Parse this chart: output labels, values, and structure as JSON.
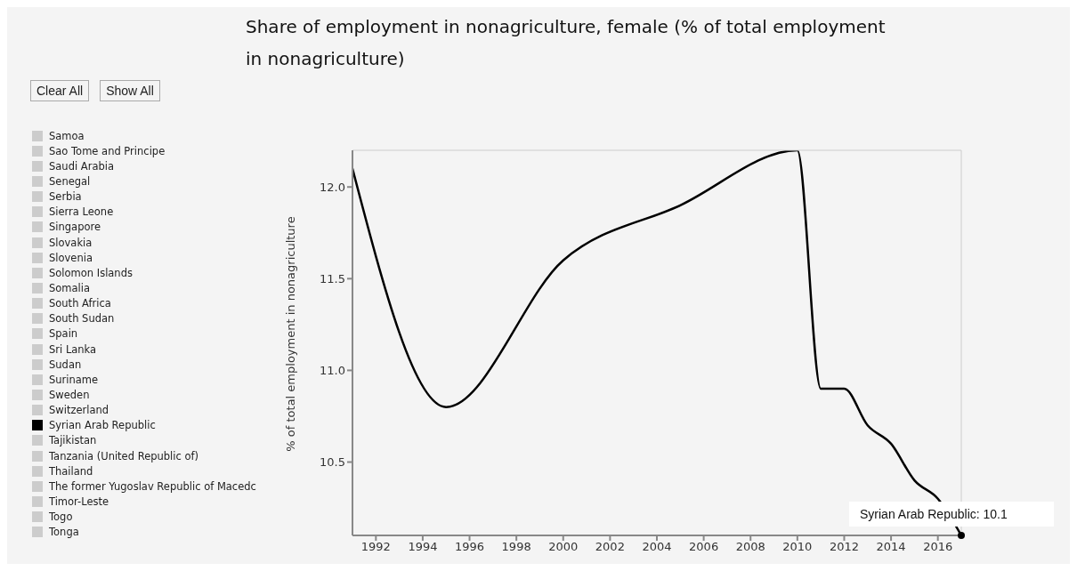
{
  "chart_data": {
    "type": "line",
    "title": "Share of employment in nonagriculture, female (% of total employment in nonagriculture)",
    "ylabel": "% of total employment in nonagriculture",
    "x": [
      1991,
      1995,
      2000,
      2005,
      2010,
      2011,
      2012,
      2013,
      2014,
      2015,
      2016,
      2017
    ],
    "xlim": [
      1991,
      2017
    ],
    "xticks": [
      1992,
      1994,
      1996,
      1998,
      2000,
      2002,
      2004,
      2006,
      2008,
      2010,
      2012,
      2014,
      2016
    ],
    "ylim": [
      10.1,
      12.2
    ],
    "yticks": [
      10.5,
      {
        "value": 11,
        "label": "11.0"
      },
      11.5,
      {
        "value": 12,
        "label": "12.0"
      }
    ],
    "grid": false,
    "legend": "left",
    "marker": "none",
    "line_style": "solid",
    "series": [
      {
        "name": "Samoa",
        "color": "#cccccc",
        "values": [
          null,
          null,
          null,
          null,
          null,
          null,
          null,
          null,
          null,
          null,
          null,
          null
        ]
      },
      {
        "name": "Sao Tome and Principe",
        "color": "#cccccc",
        "values": [
          null,
          null,
          null,
          null,
          null,
          null,
          null,
          null,
          null,
          null,
          null,
          null
        ]
      },
      {
        "name": "Saudi Arabia",
        "color": "#cccccc",
        "values": [
          null,
          null,
          null,
          null,
          null,
          null,
          null,
          null,
          null,
          null,
          null,
          null
        ]
      },
      {
        "name": "Senegal",
        "color": "#cccccc",
        "values": [
          null,
          null,
          null,
          null,
          null,
          null,
          null,
          null,
          null,
          null,
          null,
          null
        ]
      },
      {
        "name": "Serbia",
        "color": "#cccccc",
        "values": [
          null,
          null,
          null,
          null,
          null,
          null,
          null,
          null,
          null,
          null,
          null,
          null
        ]
      },
      {
        "name": "Sierra Leone",
        "color": "#cccccc",
        "values": [
          null,
          null,
          null,
          null,
          null,
          null,
          null,
          null,
          null,
          null,
          null,
          null
        ]
      },
      {
        "name": "Singapore",
        "color": "#cccccc",
        "values": [
          null,
          null,
          null,
          null,
          null,
          null,
          null,
          null,
          null,
          null,
          null,
          null
        ]
      },
      {
        "name": "Slovakia",
        "color": "#cccccc",
        "values": [
          null,
          null,
          null,
          null,
          null,
          null,
          null,
          null,
          null,
          null,
          null,
          null
        ]
      },
      {
        "name": "Slovenia",
        "color": "#cccccc",
        "values": [
          null,
          null,
          null,
          null,
          null,
          null,
          null,
          null,
          null,
          null,
          null,
          null
        ]
      },
      {
        "name": "Solomon Islands",
        "color": "#cccccc",
        "values": [
          null,
          null,
          null,
          null,
          null,
          null,
          null,
          null,
          null,
          null,
          null,
          null
        ]
      },
      {
        "name": "Somalia",
        "color": "#cccccc",
        "values": [
          null,
          null,
          null,
          null,
          null,
          null,
          null,
          null,
          null,
          null,
          null,
          null
        ]
      },
      {
        "name": "South Africa",
        "color": "#cccccc",
        "values": [
          null,
          null,
          null,
          null,
          null,
          null,
          null,
          null,
          null,
          null,
          null,
          null
        ]
      },
      {
        "name": "South Sudan",
        "color": "#cccccc",
        "values": [
          null,
          null,
          null,
          null,
          null,
          null,
          null,
          null,
          null,
          null,
          null,
          null
        ]
      },
      {
        "name": "Spain",
        "color": "#cccccc",
        "values": [
          null,
          null,
          null,
          null,
          null,
          null,
          null,
          null,
          null,
          null,
          null,
          null
        ]
      },
      {
        "name": "Sri Lanka",
        "color": "#cccccc",
        "values": [
          null,
          null,
          null,
          null,
          null,
          null,
          null,
          null,
          null,
          null,
          null,
          null
        ]
      },
      {
        "name": "Sudan",
        "color": "#cccccc",
        "values": [
          null,
          null,
          null,
          null,
          null,
          null,
          null,
          null,
          null,
          null,
          null,
          null
        ]
      },
      {
        "name": "Suriname",
        "color": "#cccccc",
        "values": [
          null,
          null,
          null,
          null,
          null,
          null,
          null,
          null,
          null,
          null,
          null,
          null
        ]
      },
      {
        "name": "Sweden",
        "color": "#cccccc",
        "values": [
          null,
          null,
          null,
          null,
          null,
          null,
          null,
          null,
          null,
          null,
          null,
          null
        ]
      },
      {
        "name": "Switzerland",
        "color": "#cccccc",
        "values": [
          null,
          null,
          null,
          null,
          null,
          null,
          null,
          null,
          null,
          null,
          null,
          null
        ]
      },
      {
        "name": "Syrian Arab Republic",
        "color": "#000000",
        "values": [
          12.1,
          10.8,
          11.6,
          11.9,
          12.2,
          10.9,
          10.9,
          10.7,
          10.6,
          10.4,
          10.3,
          10.1
        ]
      },
      {
        "name": "Tajikistan",
        "color": "#cccccc",
        "values": [
          null,
          null,
          null,
          null,
          null,
          null,
          null,
          null,
          null,
          null,
          null,
          null
        ]
      },
      {
        "name": "Tanzania (United Republic of)",
        "color": "#cccccc",
        "values": [
          null,
          null,
          null,
          null,
          null,
          null,
          null,
          null,
          null,
          null,
          null,
          null
        ]
      },
      {
        "name": "Thailand",
        "color": "#cccccc",
        "values": [
          null,
          null,
          null,
          null,
          null,
          null,
          null,
          null,
          null,
          null,
          null,
          null
        ]
      },
      {
        "name": "The former Yugoslav Republic of Macedc",
        "color": "#cccccc",
        "values": [
          null,
          null,
          null,
          null,
          null,
          null,
          null,
          null,
          null,
          null,
          null,
          null
        ]
      },
      {
        "name": "Timor-Leste",
        "color": "#cccccc",
        "values": [
          null,
          null,
          null,
          null,
          null,
          null,
          null,
          null,
          null,
          null,
          null,
          null
        ]
      },
      {
        "name": "Togo",
        "color": "#cccccc",
        "values": [
          null,
          null,
          null,
          null,
          null,
          null,
          null,
          null,
          null,
          null,
          null,
          null
        ]
      },
      {
        "name": "Tonga",
        "color": "#cccccc",
        "values": [
          null,
          null,
          null,
          null,
          null,
          null,
          null,
          null,
          null,
          null,
          null,
          null
        ]
      }
    ],
    "annotations": [
      "Clear All",
      "Show All",
      {
        "text": "Syrian Arab Republic: 10.1",
        "x": 2017,
        "y": 10.1
      }
    ]
  }
}
